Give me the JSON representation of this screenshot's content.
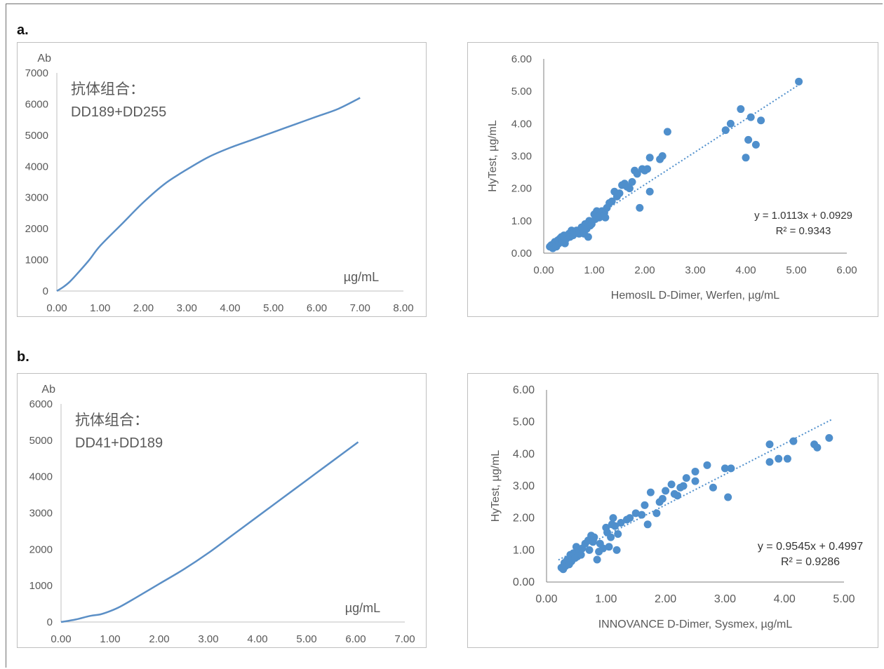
{
  "figure": {
    "label_a": "a.",
    "label_b": "b."
  },
  "colors": {
    "line": "#5b8fc6",
    "marker": "#4f8fcc",
    "axis": "#7f7f7f",
    "text": "#595959"
  },
  "chart_data": [
    {
      "id": "a-left",
      "type": "line",
      "annotation_line1": "抗体组合：",
      "annotation_line2": "DD189+DD255",
      "ylabel": "Ab",
      "xlabel": "µg/mL",
      "xlim": [
        0,
        8
      ],
      "ylim": [
        0,
        7000
      ],
      "xticks": [
        "0.00",
        "1.00",
        "2.00",
        "3.00",
        "4.00",
        "5.00",
        "6.00",
        "7.00",
        "8.00"
      ],
      "yticks": [
        "0",
        "1000",
        "2000",
        "3000",
        "4000",
        "5000",
        "6000",
        "7000"
      ],
      "x": [
        0,
        0.15,
        0.3,
        0.5,
        0.75,
        1.0,
        1.5,
        2.0,
        2.5,
        3.0,
        3.5,
        4.0,
        4.5,
        5.0,
        5.5,
        6.0,
        6.5,
        7.0
      ],
      "y": [
        0,
        130,
        300,
        600,
        1000,
        1450,
        2150,
        2850,
        3450,
        3900,
        4300,
        4600,
        4850,
        5100,
        5350,
        5600,
        5850,
        6200
      ]
    },
    {
      "id": "a-right",
      "type": "scatter",
      "xlabel": "HemosIL D-Dimer, Werfen, µg/mL",
      "ylabel": "HyTest, µg/mL",
      "xlim": [
        0,
        6
      ],
      "ylim": [
        0,
        6
      ],
      "xticks": [
        "0.00",
        "1.00",
        "2.00",
        "3.00",
        "4.00",
        "5.00",
        "6.00"
      ],
      "yticks": [
        "0.00",
        "1.00",
        "2.00",
        "3.00",
        "4.00",
        "5.00",
        "6.00"
      ],
      "equation": "y = 1.0113x + 0.0929",
      "r2": "R² = 0.9343",
      "trend": {
        "slope": 1.0113,
        "intercept": 0.0929,
        "x_from": 0.1,
        "x_to": 5.05
      },
      "points": [
        [
          0.12,
          0.2
        ],
        [
          0.15,
          0.25
        ],
        [
          0.18,
          0.15
        ],
        [
          0.2,
          0.3
        ],
        [
          0.22,
          0.35
        ],
        [
          0.25,
          0.2
        ],
        [
          0.28,
          0.4
        ],
        [
          0.3,
          0.3
        ],
        [
          0.32,
          0.45
        ],
        [
          0.35,
          0.5
        ],
        [
          0.38,
          0.35
        ],
        [
          0.4,
          0.55
        ],
        [
          0.42,
          0.3
        ],
        [
          0.45,
          0.45
        ],
        [
          0.5,
          0.6
        ],
        [
          0.52,
          0.5
        ],
        [
          0.55,
          0.7
        ],
        [
          0.58,
          0.55
        ],
        [
          0.6,
          0.65
        ],
        [
          0.65,
          0.7
        ],
        [
          0.7,
          0.6
        ],
        [
          0.75,
          0.8
        ],
        [
          0.8,
          0.6
        ],
        [
          0.82,
          0.9
        ],
        [
          0.85,
          0.75
        ],
        [
          0.88,
          0.5
        ],
        [
          0.9,
          1.0
        ],
        [
          0.92,
          0.85
        ],
        [
          0.95,
          0.9
        ],
        [
          1.0,
          1.2
        ],
        [
          1.02,
          1.05
        ],
        [
          1.05,
          1.3
        ],
        [
          1.1,
          1.1
        ],
        [
          1.12,
          1.2
        ],
        [
          1.15,
          1.3
        ],
        [
          1.2,
          1.25
        ],
        [
          1.22,
          1.1
        ],
        [
          1.25,
          1.4
        ],
        [
          1.3,
          1.55
        ],
        [
          1.35,
          1.6
        ],
        [
          1.4,
          1.9
        ],
        [
          1.45,
          1.75
        ],
        [
          1.5,
          1.85
        ],
        [
          1.55,
          2.1
        ],
        [
          1.6,
          2.15
        ],
        [
          1.65,
          2.05
        ],
        [
          1.7,
          2.0
        ],
        [
          1.75,
          2.2
        ],
        [
          1.8,
          2.55
        ],
        [
          1.85,
          2.45
        ],
        [
          1.9,
          1.4
        ],
        [
          1.95,
          2.6
        ],
        [
          2.0,
          2.55
        ],
        [
          2.05,
          2.6
        ],
        [
          2.1,
          2.95
        ],
        [
          2.1,
          1.9
        ],
        [
          2.3,
          2.9
        ],
        [
          2.35,
          3.0
        ],
        [
          2.45,
          3.75
        ],
        [
          3.6,
          3.8
        ],
        [
          3.7,
          4.0
        ],
        [
          3.9,
          4.45
        ],
        [
          4.0,
          2.95
        ],
        [
          4.05,
          3.5
        ],
        [
          4.1,
          4.2
        ],
        [
          4.2,
          3.35
        ],
        [
          4.3,
          4.1
        ],
        [
          5.05,
          5.3
        ]
      ]
    },
    {
      "id": "b-left",
      "type": "line",
      "annotation_line1": "抗体组合：",
      "annotation_line2": "DD41+DD189",
      "ylabel": "Ab",
      "xlabel": "µg/mL",
      "xlim": [
        0,
        7
      ],
      "ylim": [
        0,
        6000
      ],
      "xticks": [
        "0.00",
        "1.00",
        "2.00",
        "3.00",
        "4.00",
        "5.00",
        "6.00",
        "7.00"
      ],
      "yticks": [
        "0",
        "1000",
        "2000",
        "3000",
        "4000",
        "5000",
        "6000"
      ],
      "x": [
        0,
        0.3,
        0.6,
        0.8,
        1.0,
        1.2,
        1.5,
        2.0,
        2.5,
        3.0,
        3.5,
        4.0,
        4.5,
        5.0,
        5.5,
        6.05
      ],
      "y": [
        0,
        70,
        170,
        210,
        300,
        420,
        650,
        1050,
        1450,
        1900,
        2400,
        2900,
        3400,
        3900,
        4400,
        4950
      ]
    },
    {
      "id": "b-right",
      "type": "scatter",
      "xlabel": "INNOVANCE D-Dimer, Sysmex, µg/mL",
      "ylabel": "HyTest, µg/mL",
      "xlim": [
        0,
        5
      ],
      "ylim": [
        0,
        6
      ],
      "xticks": [
        "0.00",
        "1.00",
        "2.00",
        "3.00",
        "4.00",
        "5.00"
      ],
      "yticks": [
        "0.00",
        "1.00",
        "2.00",
        "3.00",
        "4.00",
        "5.00",
        "6.00"
      ],
      "equation": "y = 0.9545x + 0.4997",
      "r2": "R² = 0.9286",
      "trend": {
        "slope": 0.9545,
        "intercept": 0.4997,
        "x_from": 0.2,
        "x_to": 4.8
      },
      "points": [
        [
          0.25,
          0.45
        ],
        [
          0.28,
          0.4
        ],
        [
          0.3,
          0.6
        ],
        [
          0.32,
          0.5
        ],
        [
          0.35,
          0.7
        ],
        [
          0.38,
          0.55
        ],
        [
          0.4,
          0.85
        ],
        [
          0.42,
          0.65
        ],
        [
          0.45,
          0.9
        ],
        [
          0.48,
          0.75
        ],
        [
          0.5,
          1.1
        ],
        [
          0.52,
          0.8
        ],
        [
          0.55,
          1.0
        ],
        [
          0.58,
          0.85
        ],
        [
          0.6,
          1.05
        ],
        [
          0.65,
          1.2
        ],
        [
          0.7,
          1.3
        ],
        [
          0.72,
          1.0
        ],
        [
          0.75,
          1.45
        ],
        [
          0.78,
          1.25
        ],
        [
          0.8,
          1.4
        ],
        [
          0.85,
          0.7
        ],
        [
          0.88,
          0.95
        ],
        [
          0.9,
          1.2
        ],
        [
          0.95,
          1.05
        ],
        [
          1.0,
          1.7
        ],
        [
          1.02,
          1.55
        ],
        [
          1.05,
          1.1
        ],
        [
          1.08,
          1.4
        ],
        [
          1.1,
          1.8
        ],
        [
          1.12,
          2.0
        ],
        [
          1.15,
          1.75
        ],
        [
          1.18,
          1.0
        ],
        [
          1.2,
          1.5
        ],
        [
          1.25,
          1.85
        ],
        [
          1.35,
          1.95
        ],
        [
          1.4,
          2.0
        ],
        [
          1.5,
          2.15
        ],
        [
          1.6,
          2.1
        ],
        [
          1.65,
          2.4
        ],
        [
          1.7,
          1.8
        ],
        [
          1.75,
          2.8
        ],
        [
          1.85,
          2.15
        ],
        [
          1.9,
          2.5
        ],
        [
          1.95,
          2.6
        ],
        [
          2.0,
          2.85
        ],
        [
          2.1,
          3.05
        ],
        [
          2.15,
          2.75
        ],
        [
          2.2,
          2.7
        ],
        [
          2.25,
          2.95
        ],
        [
          2.3,
          3.0
        ],
        [
          2.35,
          3.25
        ],
        [
          2.5,
          3.45
        ],
        [
          2.5,
          3.15
        ],
        [
          2.7,
          3.65
        ],
        [
          2.8,
          2.95
        ],
        [
          3.0,
          3.55
        ],
        [
          3.1,
          3.55
        ],
        [
          3.05,
          2.65
        ],
        [
          3.75,
          4.3
        ],
        [
          3.75,
          3.75
        ],
        [
          3.9,
          3.85
        ],
        [
          4.05,
          3.85
        ],
        [
          4.15,
          4.4
        ],
        [
          4.5,
          4.3
        ],
        [
          4.55,
          4.2
        ],
        [
          4.75,
          4.5
        ]
      ]
    }
  ]
}
